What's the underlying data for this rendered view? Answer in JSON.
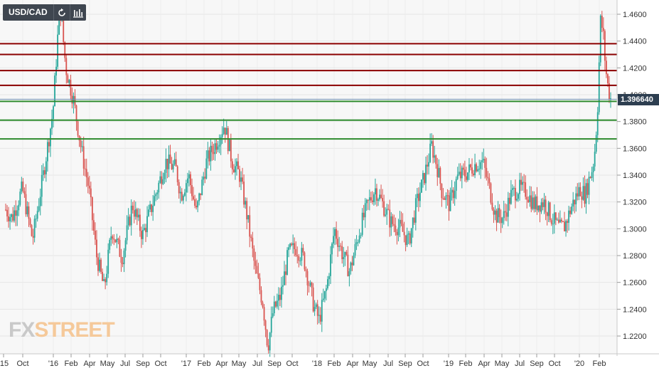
{
  "toolbar": {
    "symbol": "USD/CAD",
    "refresh_icon": "refresh-icon",
    "chart_type_icon": "candlestick-icon"
  },
  "logo": {
    "fx": "FX",
    "street": "STREET"
  },
  "current_price": "1.396640",
  "colors": {
    "up": "#26a69a",
    "down": "#d9534f",
    "resistance": "#8b0000",
    "support": "#2e8b2e",
    "price_tag": "#2d3e50",
    "background": "#f7f7f7"
  },
  "chart_data": {
    "type": "candlestick",
    "symbol": "USD/CAD",
    "y_axis": {
      "ticks": [
        "1.4600",
        "1.4400",
        "1.4200",
        "1.4000",
        "1.3800",
        "1.3600",
        "1.3400",
        "1.3200",
        "1.3000",
        "1.2800",
        "1.2600",
        "1.2400",
        "1.2200"
      ],
      "ylim": [
        1.205,
        1.47
      ]
    },
    "x_axis": {
      "ticks": [
        "'15",
        "Oct",
        "'16",
        "Feb",
        "Apr",
        "May",
        "Jul",
        "Sep",
        "Oct",
        "'17",
        "Feb",
        "Apr",
        "May",
        "Jul",
        "Sep",
        "Oct",
        "'18",
        "Feb",
        "Apr",
        "May",
        "Jul",
        "Sep",
        "Oct",
        "'19",
        "Feb",
        "Apr",
        "May",
        "Jul",
        "Sep",
        "Oct",
        "'20",
        "Feb"
      ],
      "range": [
        "2015-08",
        "2020-03"
      ]
    },
    "horizontal_lines": [
      {
        "value": 1.438,
        "kind": "resistance"
      },
      {
        "value": 1.43,
        "kind": "resistance"
      },
      {
        "value": 1.418,
        "kind": "resistance"
      },
      {
        "value": 1.407,
        "kind": "resistance"
      },
      {
        "value": 1.395,
        "kind": "support"
      },
      {
        "value": 1.381,
        "kind": "support"
      },
      {
        "value": 1.367,
        "kind": "support"
      }
    ],
    "current_price_line": 1.39664,
    "price_path": [
      [
        2015.6,
        1.318
      ],
      [
        2015.68,
        1.308
      ],
      [
        2015.76,
        1.33
      ],
      [
        2015.84,
        1.292
      ],
      [
        2015.92,
        1.338
      ],
      [
        2016.0,
        1.388
      ],
      [
        2016.04,
        1.448
      ],
      [
        2016.06,
        1.462
      ],
      [
        2016.1,
        1.42
      ],
      [
        2016.16,
        1.396
      ],
      [
        2016.22,
        1.36
      ],
      [
        2016.28,
        1.33
      ],
      [
        2016.34,
        1.28
      ],
      [
        2016.4,
        1.255
      ],
      [
        2016.46,
        1.3
      ],
      [
        2016.54,
        1.278
      ],
      [
        2016.62,
        1.318
      ],
      [
        2016.7,
        1.295
      ],
      [
        2016.8,
        1.325
      ],
      [
        2016.88,
        1.35
      ],
      [
        2016.96,
        1.345
      ],
      [
        2017.0,
        1.325
      ],
      [
        2017.06,
        1.34
      ],
      [
        2017.12,
        1.312
      ],
      [
        2017.2,
        1.35
      ],
      [
        2017.28,
        1.365
      ],
      [
        2017.34,
        1.378
      ],
      [
        2017.4,
        1.35
      ],
      [
        2017.46,
        1.34
      ],
      [
        2017.52,
        1.308
      ],
      [
        2017.58,
        1.27
      ],
      [
        2017.64,
        1.245
      ],
      [
        2017.68,
        1.212
      ],
      [
        2017.72,
        1.238
      ],
      [
        2017.78,
        1.25
      ],
      [
        2017.84,
        1.282
      ],
      [
        2017.9,
        1.286
      ],
      [
        2017.96,
        1.278
      ],
      [
        2018.0,
        1.26
      ],
      [
        2018.04,
        1.242
      ],
      [
        2018.08,
        1.232
      ],
      [
        2018.14,
        1.256
      ],
      [
        2018.2,
        1.3
      ],
      [
        2018.26,
        1.282
      ],
      [
        2018.32,
        1.268
      ],
      [
        2018.4,
        1.3
      ],
      [
        2018.46,
        1.318
      ],
      [
        2018.52,
        1.33
      ],
      [
        2018.58,
        1.318
      ],
      [
        2018.64,
        1.305
      ],
      [
        2018.72,
        1.3
      ],
      [
        2018.78,
        1.29
      ],
      [
        2018.84,
        1.318
      ],
      [
        2018.9,
        1.338
      ],
      [
        2018.96,
        1.362
      ],
      [
        2019.0,
        1.348
      ],
      [
        2019.04,
        1.328
      ],
      [
        2019.1,
        1.318
      ],
      [
        2019.16,
        1.338
      ],
      [
        2019.24,
        1.342
      ],
      [
        2019.3,
        1.348
      ],
      [
        2019.36,
        1.35
      ],
      [
        2019.4,
        1.335
      ],
      [
        2019.46,
        1.31
      ],
      [
        2019.52,
        1.308
      ],
      [
        2019.58,
        1.325
      ],
      [
        2019.64,
        1.33
      ],
      [
        2019.7,
        1.328
      ],
      [
        2019.76,
        1.318
      ],
      [
        2019.84,
        1.32
      ],
      [
        2019.9,
        1.308
      ],
      [
        2019.96,
        1.3
      ],
      [
        2020.0,
        1.302
      ],
      [
        2020.06,
        1.318
      ],
      [
        2020.12,
        1.33
      ],
      [
        2020.16,
        1.325
      ],
      [
        2020.2,
        1.34
      ],
      [
        2020.22,
        1.346
      ],
      [
        2020.24,
        1.362
      ],
      [
        2020.26,
        1.395
      ],
      [
        2020.28,
        1.455
      ],
      [
        2020.3,
        1.448
      ],
      [
        2020.32,
        1.42
      ],
      [
        2020.34,
        1.405
      ],
      [
        2020.36,
        1.397
      ]
    ]
  }
}
